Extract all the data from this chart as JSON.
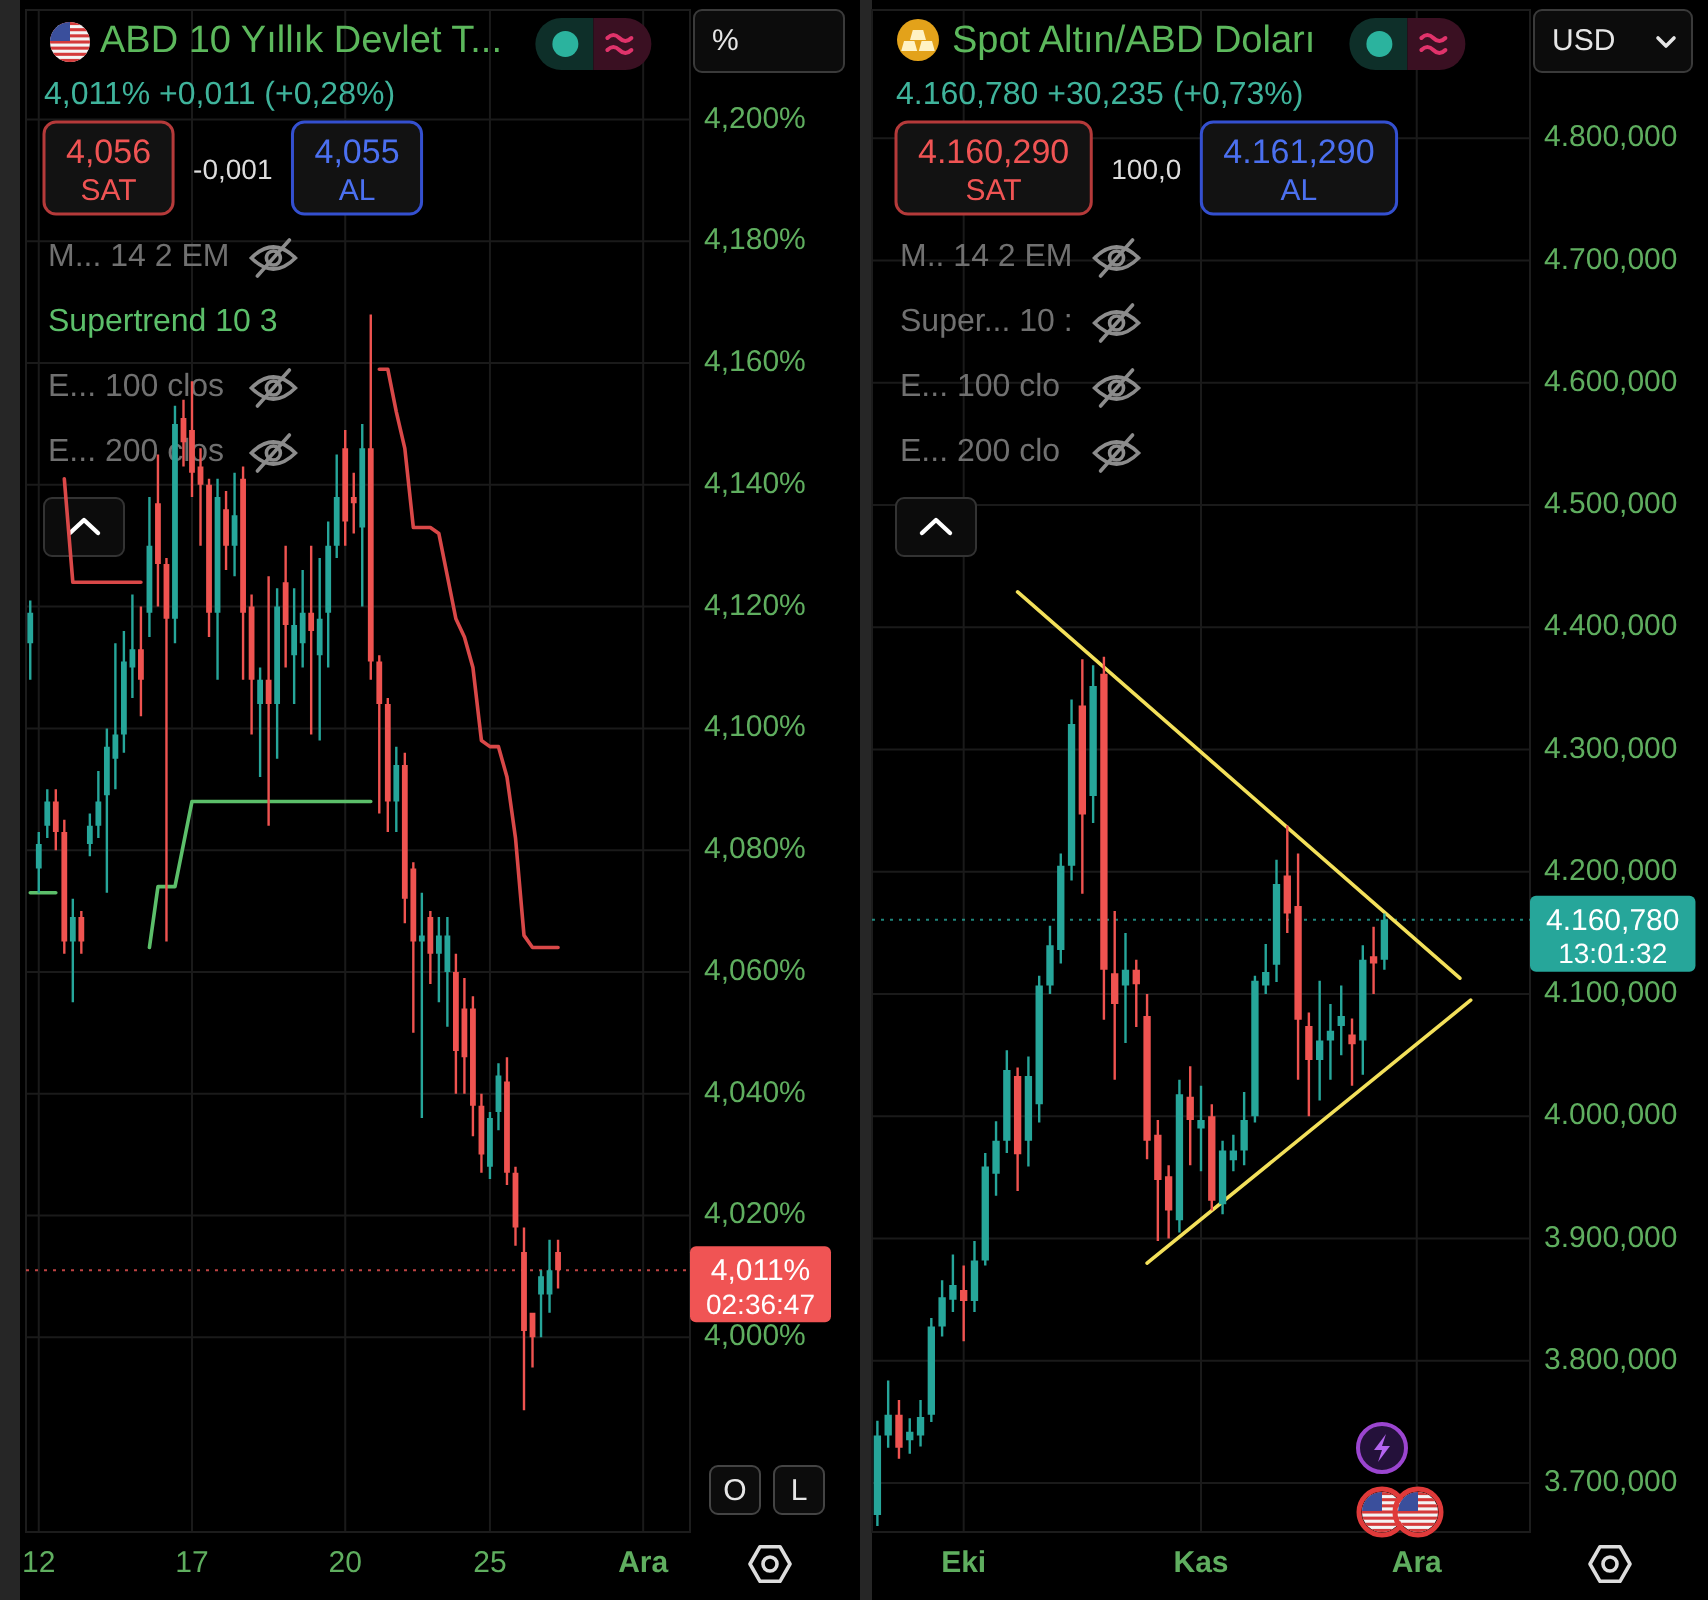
{
  "chart_data": [
    {
      "type": "candlestick",
      "title": "ABD 10 Yıllık Devlet T...",
      "subtitle": "4,011% +0,011 (+0,28%)",
      "categories": [
        null,
        "12",
        null,
        null,
        null,
        null,
        null,
        null,
        null,
        null,
        null,
        null,
        null,
        null,
        null,
        null,
        null,
        null,
        null,
        "17",
        null,
        null,
        null,
        null,
        null,
        null,
        null,
        null,
        null,
        null,
        null,
        null,
        null,
        null,
        null,
        null,
        null,
        "20",
        null,
        null,
        null,
        null,
        null,
        null,
        null,
        null,
        null,
        null,
        null,
        null,
        null,
        null,
        null,
        null,
        "25",
        null,
        null,
        null,
        null,
        null,
        null,
        null,
        null,
        null,
        null,
        null,
        null,
        null,
        null,
        null,
        null,
        null,
        "Ara",
        null,
        null,
        null,
        null,
        null
      ],
      "ohlc": [
        [
          4.114,
          4.121,
          4.108,
          4.119
        ],
        [
          4.077,
          4.083,
          4.073,
          4.081
        ],
        [
          4.084,
          4.09,
          4.082,
          4.088
        ],
        [
          4.088,
          4.09,
          4.08,
          4.083
        ],
        [
          4.083,
          4.085,
          4.063,
          4.065
        ],
        [
          4.065,
          4.072,
          4.055,
          4.069
        ],
        [
          4.069,
          4.07,
          4.063,
          4.065
        ],
        [
          4.081,
          4.086,
          4.079,
          4.084
        ],
        [
          4.084,
          4.093,
          4.082,
          4.088
        ],
        [
          4.089,
          4.1,
          4.073,
          4.097
        ],
        [
          4.095,
          4.114,
          4.09,
          4.099
        ],
        [
          4.099,
          4.116,
          4.096,
          4.111
        ],
        [
          4.11,
          4.122,
          4.105,
          4.113
        ],
        [
          4.113,
          4.12,
          4.102,
          4.108
        ],
        [
          4.119,
          4.138,
          4.115,
          4.13
        ],
        [
          4.137,
          4.145,
          4.12,
          4.127
        ],
        [
          4.127,
          4.128,
          4.065,
          4.118
        ],
        [
          4.118,
          4.153,
          4.114,
          4.15
        ],
        [
          4.151,
          4.154,
          4.143,
          4.147
        ],
        [
          4.149,
          4.157,
          4.138,
          4.142
        ],
        [
          4.143,
          4.146,
          4.13,
          4.14
        ],
        [
          4.14,
          4.141,
          4.115,
          4.119
        ],
        [
          4.119,
          4.141,
          4.108,
          4.138
        ],
        [
          4.136,
          4.139,
          4.126,
          4.13
        ],
        [
          4.13,
          4.142,
          4.125,
          4.135
        ],
        [
          4.141,
          4.143,
          4.108,
          4.119
        ],
        [
          4.12,
          4.122,
          4.099,
          4.108
        ],
        [
          4.104,
          4.11,
          4.092,
          4.108
        ],
        [
          4.108,
          4.125,
          4.084,
          4.104
        ],
        [
          4.104,
          4.123,
          4.095,
          4.12
        ],
        [
          4.124,
          4.13,
          4.11,
          4.117
        ],
        [
          4.112,
          4.123,
          4.104,
          4.117
        ],
        [
          4.114,
          4.126,
          4.11,
          4.119
        ],
        [
          4.119,
          4.13,
          4.099,
          4.116
        ],
        [
          4.112,
          4.128,
          4.098,
          4.118
        ],
        [
          4.119,
          4.134,
          4.11,
          4.13
        ],
        [
          4.13,
          4.145,
          4.128,
          4.138
        ],
        [
          4.146,
          4.149,
          4.13,
          4.134
        ],
        [
          4.138,
          4.142,
          4.132,
          4.137
        ],
        [
          4.133,
          4.15,
          4.12,
          4.146
        ],
        [
          4.146,
          4.168,
          4.108,
          4.111
        ],
        [
          4.111,
          4.112,
          4.086,
          4.104
        ],
        [
          4.104,
          4.105,
          4.083,
          4.088
        ],
        [
          4.088,
          4.097,
          4.083,
          4.094
        ],
        [
          4.094,
          4.096,
          4.068,
          4.072
        ],
        [
          4.077,
          4.078,
          4.05,
          4.065
        ],
        [
          4.065,
          4.073,
          4.036,
          4.066
        ],
        [
          4.069,
          4.07,
          4.058,
          4.063
        ],
        [
          4.063,
          4.069,
          4.055,
          4.066
        ],
        [
          4.06,
          4.069,
          4.051,
          4.066
        ],
        [
          4.06,
          4.063,
          4.04,
          4.047
        ],
        [
          4.054,
          4.059,
          4.04,
          4.046
        ],
        [
          4.054,
          4.056,
          4.033,
          4.038
        ],
        [
          4.038,
          4.04,
          4.027,
          4.03
        ],
        [
          4.028,
          4.037,
          4.026,
          4.036
        ],
        [
          4.037,
          4.045,
          4.034,
          4.043
        ],
        [
          4.042,
          4.046,
          4.025,
          4.027
        ],
        [
          4.027,
          4.028,
          4.015,
          4.018
        ],
        [
          4.014,
          4.018,
          3.988,
          4.001
        ],
        [
          4.004,
          4.004,
          3.995,
          4.0
        ],
        [
          4.007,
          4.011,
          4.0,
          4.01
        ],
        [
          4.007,
          4.016,
          4.004,
          4.011
        ],
        [
          4.014,
          4.016,
          4.008,
          4.011
        ],
        null,
        null,
        null,
        null,
        null,
        null,
        null,
        null,
        null,
        null,
        null,
        null,
        null,
        null,
        null
      ],
      "colors": [
        "#26a69a",
        "#26a69a",
        "#26a69a",
        "#ef5350",
        "#ef5350",
        "#26a69a",
        "#ef5350",
        "#26a69a",
        "#26a69a",
        "#26a69a",
        "#26a69a",
        "#26a69a",
        "#26a69a",
        "#ef5350",
        "#26a69a",
        "#ef5350",
        "#ef5350",
        "#26a69a",
        "#ef5350",
        "#ef5350",
        "#ef5350",
        "#ef5350",
        "#26a69a",
        "#ef5350",
        "#26a69a",
        "#ef5350",
        "#ef5350",
        "#26a69a",
        "#ef5350",
        "#26a69a",
        "#ef5350",
        "#26a69a",
        "#26a69a",
        "#ef5350",
        "#26a69a",
        "#26a69a",
        "#26a69a",
        "#ef5350",
        "#ef5350",
        "#26a69a",
        "#ef5350",
        "#ef5350",
        "#ef5350",
        "#26a69a",
        "#ef5350",
        "#ef5350",
        "#26a69a",
        "#ef5350",
        "#26a69a",
        "#26a69a",
        "#ef5350",
        "#ef5350",
        "#ef5350",
        "#ef5350",
        "#26a69a",
        "#26a69a",
        "#ef5350",
        "#ef5350",
        "#ef5350",
        "#ef5350",
        "#26a69a",
        "#26a69a",
        "#ef5350",
        null,
        null,
        null,
        null,
        null,
        null,
        null,
        null,
        null,
        null,
        null,
        null,
        null,
        null,
        null
      ],
      "ylim": [
        3.968,
        4.218
      ],
      "yticks": [
        {
          "value": 4,
          "label": "4,000%"
        },
        {
          "value": 4.02,
          "label": "4,020%"
        },
        {
          "value": 4.04,
          "label": "4,040%"
        },
        {
          "value": 4.06,
          "label": "4,060%"
        },
        {
          "value": 4.08,
          "label": "4,080%"
        },
        {
          "value": 4.1,
          "label": "4,100%"
        },
        {
          "value": 4.12,
          "label": "4,120%"
        },
        {
          "value": 4.14,
          "label": "4,140%"
        },
        {
          "value": 4.16,
          "label": "4,160%"
        },
        {
          "value": 4.18,
          "label": "4,180%"
        },
        {
          "value": 4.2,
          "label": "4,200%"
        }
      ],
      "grid": true,
      "legend": "top left",
      "series": [
        {
          "type": "line",
          "color": "#5cbf6a",
          "values": [
            4.073,
            4.073,
            4.073,
            4.073,
            null,
            null,
            null,
            null,
            null,
            null,
            null,
            null,
            null,
            null,
            null,
            null,
            null,
            null,
            null,
            null,
            null,
            null,
            null,
            null,
            null,
            null,
            null,
            null,
            null,
            null,
            null,
            null,
            null,
            null,
            null,
            null,
            null,
            null,
            null,
            null,
            null,
            null,
            null,
            null,
            null,
            null,
            null,
            null,
            null,
            null,
            null,
            null,
            null,
            null,
            null,
            null,
            null,
            null,
            null,
            null,
            null,
            null,
            null,
            null,
            null,
            null,
            null,
            null,
            null,
            null,
            null,
            null,
            null,
            null,
            null,
            null,
            null,
            null
          ]
        },
        {
          "type": "line",
          "color": "#d94848",
          "values": [
            null,
            null,
            null,
            null,
            4.141,
            4.124,
            4.124,
            4.124,
            4.124,
            4.124,
            4.124,
            4.124,
            4.124,
            4.124,
            null,
            null,
            null,
            null,
            null,
            null,
            null,
            null,
            null,
            null,
            null,
            null,
            null,
            null,
            null,
            null,
            null,
            null,
            null,
            null,
            null,
            null,
            null,
            null,
            null,
            null,
            null,
            null,
            null,
            null,
            null,
            null,
            null,
            null,
            null,
            null,
            null,
            null,
            null,
            null,
            null,
            null,
            null,
            null,
            null,
            null,
            null,
            null,
            null,
            null,
            null,
            null,
            null,
            null,
            null,
            null,
            null,
            null,
            null,
            null,
            null,
            null,
            null,
            null
          ]
        },
        {
          "type": "line",
          "name": "Supertrend 10 3",
          "color": "#5cbf6a",
          "values": [
            null,
            null,
            null,
            null,
            null,
            null,
            null,
            null,
            null,
            null,
            null,
            null,
            null,
            null,
            4.064,
            4.074,
            4.074,
            4.074,
            4.081,
            4.088,
            4.088,
            4.088,
            4.088,
            4.088,
            4.088,
            4.088,
            4.088,
            4.088,
            4.088,
            4.088,
            4.088,
            4.088,
            4.088,
            4.088,
            4.088,
            4.088,
            4.088,
            4.088,
            4.088,
            4.088,
            4.088,
            null,
            null,
            null,
            null,
            null,
            null,
            null,
            null,
            null,
            null,
            null,
            null,
            null,
            null,
            null,
            null,
            null,
            null,
            null,
            null,
            null,
            null,
            null,
            null,
            null,
            null,
            null,
            null,
            null,
            null,
            null,
            null,
            null,
            null,
            null,
            null,
            null
          ]
        },
        {
          "type": "line",
          "color": "#d94848",
          "values": [
            null,
            null,
            null,
            null,
            null,
            null,
            null,
            null,
            null,
            null,
            null,
            null,
            null,
            null,
            null,
            null,
            null,
            null,
            null,
            null,
            null,
            null,
            null,
            null,
            null,
            null,
            null,
            null,
            null,
            null,
            null,
            null,
            null,
            null,
            null,
            null,
            null,
            null,
            null,
            null,
            null,
            4.159,
            4.159,
            4.152,
            4.146,
            4.133,
            4.133,
            4.133,
            4.132,
            4.125,
            4.118,
            4.115,
            4.11,
            4.098,
            4.097,
            4.097,
            4.092,
            4.082,
            4.066,
            4.064,
            4.064,
            4.064,
            4.064,
            null,
            null,
            null,
            null,
            null,
            null,
            null,
            null,
            null,
            null,
            null,
            null,
            null,
            null,
            null
          ]
        }
      ],
      "ref_lines": [
        {
          "axis": "y",
          "value": 4.011,
          "color": "#f05454",
          "line_style": "dotted"
        }
      ],
      "annotations": [
        "4,056",
        "SAT",
        "-0,001",
        "4,055",
        "AL",
        "M... 14 2 EM",
        "E... 100 clos",
        "E... 200 clos",
        "%",
        "02:36:47",
        "O",
        "L",
        "4,011%"
      ]
    },
    {
      "type": "candlestick",
      "title": "Spot Altın/ABD Doları",
      "subtitle": "4.160,780 +30,235 (+0,73%)",
      "categories": [
        null,
        null,
        null,
        null,
        null,
        null,
        null,
        null,
        "Eki",
        null,
        null,
        null,
        null,
        null,
        null,
        null,
        null,
        null,
        null,
        null,
        null,
        null,
        null,
        null,
        null,
        null,
        null,
        null,
        null,
        null,
        "Kas",
        null,
        null,
        null,
        null,
        null,
        null,
        null,
        null,
        null,
        null,
        null,
        null,
        null,
        null,
        null,
        null,
        null,
        null,
        null,
        "Ara",
        null,
        null,
        null,
        null,
        null,
        null,
        null,
        null,
        null,
        null
      ],
      "ohlc": [
        [
          3674,
          3751,
          3665,
          3739
        ],
        [
          3739,
          3784,
          3729,
          3756
        ],
        [
          3756,
          3768,
          3720,
          3729
        ],
        [
          3735,
          3753,
          3724,
          3742
        ],
        [
          3739,
          3768,
          3730,
          3754
        ],
        [
          3756,
          3835,
          3750,
          3828
        ],
        [
          3828,
          3866,
          3820,
          3852
        ],
        [
          3850,
          3887,
          3840,
          3862
        ],
        [
          3858,
          3878,
          3816,
          3849
        ],
        [
          3849,
          3898,
          3840,
          3882
        ],
        [
          3882,
          3970,
          3878,
          3959
        ],
        [
          3953,
          3996,
          3935,
          3980
        ],
        [
          3980,
          4054,
          3970,
          4038
        ],
        [
          4033,
          4040,
          3939,
          3969
        ],
        [
          3980,
          4049,
          3959,
          4033
        ],
        [
          4010,
          4115,
          3995,
          4107
        ],
        [
          4107,
          4156,
          4100,
          4140
        ],
        [
          4136,
          4215,
          4125,
          4205
        ],
        [
          4205,
          4341,
          4193,
          4321
        ],
        [
          4336,
          4374,
          4182,
          4247
        ],
        [
          4262,
          4369,
          4240,
          4352
        ],
        [
          4362,
          4376,
          4079,
          4120
        ],
        [
          4117,
          4168,
          4030,
          4092
        ],
        [
          4107,
          4150,
          4060,
          4120
        ],
        [
          4120,
          4128,
          4073,
          4108
        ],
        [
          4082,
          4100,
          3965,
          3980
        ],
        [
          3985,
          3997,
          3898,
          3948
        ],
        [
          3951,
          3960,
          3900,
          3923
        ],
        [
          3915,
          4030,
          3905,
          4018
        ],
        [
          4016,
          4041,
          3960,
          3997
        ],
        [
          3990,
          4025,
          3955,
          3997
        ],
        [
          4000,
          4010,
          3923,
          3931
        ],
        [
          3928,
          3980,
          3920,
          3972
        ],
        [
          3964,
          3985,
          3955,
          3972
        ],
        [
          3972,
          4020,
          3960,
          3997
        ],
        [
          4000,
          4115,
          3995,
          4111
        ],
        [
          4107,
          4141,
          4100,
          4118
        ],
        [
          4124,
          4210,
          4110,
          4190
        ],
        [
          4197,
          4238,
          4150,
          4166
        ],
        [
          4172,
          4215,
          4030,
          4079
        ],
        [
          4074,
          4085,
          4000,
          4046
        ],
        [
          4046,
          4111,
          4013,
          4062
        ],
        [
          4062,
          4092,
          4030,
          4070
        ],
        [
          4074,
          4107,
          4050,
          4082
        ],
        [
          4067,
          4080,
          4025,
          4059
        ],
        [
          4062,
          4140,
          4034,
          4128
        ],
        [
          4131,
          4155,
          4100,
          4125
        ],
        [
          4128,
          4166,
          4120,
          4160.78
        ],
        null,
        null,
        null,
        null,
        null,
        null,
        null,
        null,
        null,
        null,
        null,
        null,
        null
      ],
      "colors": [
        "#26a69a",
        "#26a69a",
        "#ef5350",
        "#26a69a",
        "#26a69a",
        "#26a69a",
        "#26a69a",
        "#26a69a",
        "#ef5350",
        "#26a69a",
        "#26a69a",
        "#26a69a",
        "#26a69a",
        "#ef5350",
        "#26a69a",
        "#26a69a",
        "#26a69a",
        "#26a69a",
        "#26a69a",
        "#ef5350",
        "#26a69a",
        "#ef5350",
        "#ef5350",
        "#26a69a",
        "#ef5350",
        "#ef5350",
        "#ef5350",
        "#ef5350",
        "#26a69a",
        "#ef5350",
        "#26a69a",
        "#ef5350",
        "#26a69a",
        "#26a69a",
        "#26a69a",
        "#26a69a",
        "#26a69a",
        "#26a69a",
        "#ef5350",
        "#ef5350",
        "#ef5350",
        "#26a69a",
        "#26a69a",
        "#26a69a",
        "#ef5350",
        "#26a69a",
        "#ef5350",
        "#26a69a",
        null,
        null,
        null,
        null,
        null,
        null,
        null,
        null,
        null,
        null,
        null,
        null,
        null
      ],
      "ylim": [
        3660,
        4905
      ],
      "yticks": [
        {
          "value": 3700,
          "label": "3.700,000"
        },
        {
          "value": 3800,
          "label": "3.800,000"
        },
        {
          "value": 3900,
          "label": "3.900,000"
        },
        {
          "value": 4000,
          "label": "4.000,000"
        },
        {
          "value": 4100,
          "label": "4.100,000"
        },
        {
          "value": 4200,
          "label": "4.200,000"
        },
        {
          "value": 4300,
          "label": "4.300,000"
        },
        {
          "value": 4400,
          "label": "4.400,000"
        },
        {
          "value": 4500,
          "label": "4.500,000"
        },
        {
          "value": 4600,
          "label": "4.600,000"
        },
        {
          "value": 4700,
          "label": "4.700,000"
        },
        {
          "value": 4800,
          "label": "4.800,000"
        }
      ],
      "grid": true,
      "series": [
        {
          "type": "line",
          "color": "#f3e05a",
          "values": [
            null,
            null,
            null,
            null,
            null,
            null,
            null,
            null,
            null,
            null,
            null,
            null,
            null,
            4429,
            null,
            null,
            null,
            null,
            null,
            null,
            null,
            null,
            null,
            null,
            null,
            null,
            null,
            null,
            null,
            null,
            null,
            null,
            null,
            null,
            null,
            null,
            null,
            null,
            null,
            null,
            null,
            null,
            null,
            null,
            null,
            null,
            null,
            null,
            null,
            null,
            null,
            null,
            null,
            null,
            4113,
            null,
            null,
            null,
            null,
            null,
            null
          ]
        },
        {
          "type": "line",
          "color": "#f3e05a",
          "values": [
            null,
            null,
            null,
            null,
            null,
            null,
            null,
            null,
            null,
            null,
            null,
            null,
            null,
            null,
            null,
            null,
            null,
            null,
            null,
            null,
            null,
            null,
            null,
            null,
            null,
            3880,
            null,
            null,
            null,
            null,
            null,
            null,
            null,
            null,
            null,
            null,
            null,
            null,
            null,
            null,
            null,
            null,
            null,
            null,
            null,
            null,
            null,
            null,
            null,
            null,
            null,
            null,
            null,
            null,
            null,
            4095,
            null,
            null,
            null,
            null,
            null
          ]
        }
      ],
      "ref_lines": [
        {
          "axis": "y",
          "value": 4160.78,
          "color": "#26a69a",
          "line_style": "dotted"
        }
      ],
      "annotations": [
        "4.160,290",
        "SAT",
        "100,0",
        "4.161,290",
        "AL",
        "M.. 14 2 EM",
        "Super... 10 :",
        "E... 100 clo",
        "E... 200 clo",
        "USD",
        "13:01:32",
        "4.160,780"
      ]
    }
  ]
}
